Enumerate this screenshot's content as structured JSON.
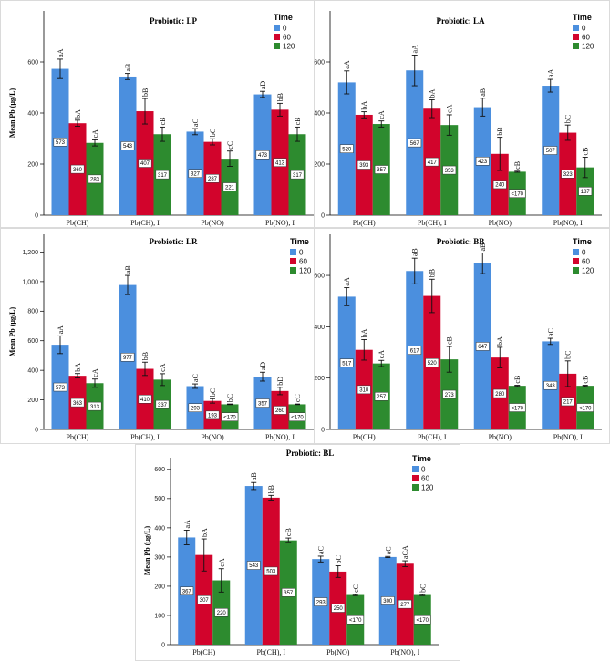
{
  "chart_data": [
    {
      "type": "bar",
      "title": "Probiotic: LP",
      "xlabel": "",
      "ylabel": "Mean Pb (μg/L)",
      "categories": [
        "Pb(CH)",
        "Pb(CH), I",
        "Pb(NO)",
        "Pb(NO), I"
      ],
      "ylim": [
        0,
        800
      ],
      "yticks": [
        "0",
        "200",
        "400",
        "600"
      ],
      "legend": {
        "title": "Time",
        "placement": "top-right"
      },
      "series": [
        {
          "name": "0",
          "color": "#4B8FDE",
          "values": [
            573,
            543,
            327,
            473
          ],
          "errors": [
            38,
            12,
            12,
            12
          ],
          "value_labels": [
            "573",
            "543",
            "327",
            "473"
          ],
          "letters": [
            "aA",
            "aB",
            "aC",
            "aD"
          ]
        },
        {
          "name": "60",
          "color": "#D2042C",
          "values": [
            360,
            407,
            287,
            413
          ],
          "errors": [
            12,
            50,
            12,
            25
          ],
          "value_labels": [
            "360",
            "407",
            "287",
            "413"
          ],
          "letters": [
            "bA",
            "bB",
            "bC",
            "bB"
          ]
        },
        {
          "name": "120",
          "color": "#2D8B2F",
          "values": [
            283,
            317,
            221,
            317
          ],
          "errors": [
            12,
            28,
            30,
            28
          ],
          "value_labels": [
            "283",
            "317",
            "221",
            "317"
          ],
          "letters": [
            "cA",
            "cB",
            "cC",
            "cB"
          ]
        }
      ]
    },
    {
      "type": "bar",
      "title": "Probiotic: LA",
      "xlabel": "",
      "ylabel": "",
      "categories": [
        "Pb(CH)",
        "Pb(CH), I",
        "Pb(NO)",
        "Pb(NO), I"
      ],
      "ylim": [
        0,
        800
      ],
      "yticks": [
        "0",
        "200",
        "400",
        "600"
      ],
      "legend": {
        "title": "Time",
        "placement": "top-right"
      },
      "series": [
        {
          "name": "0",
          "color": "#4B8FDE",
          "values": [
            520,
            567,
            423,
            507
          ],
          "errors": [
            45,
            60,
            35,
            25
          ],
          "value_labels": [
            "520",
            "567",
            "423",
            "507"
          ],
          "letters": [
            "aA",
            "aA",
            "aB",
            "aA"
          ]
        },
        {
          "name": "60",
          "color": "#D2042C",
          "values": [
            393,
            417,
            240,
            323
          ],
          "errors": [
            12,
            35,
            65,
            30
          ],
          "value_labels": [
            "393",
            "417",
            "240",
            "323"
          ],
          "letters": [
            "bA",
            "bA",
            "bB",
            "bC"
          ]
        },
        {
          "name": "120",
          "color": "#2D8B2F",
          "values": [
            357,
            353,
            170,
            187
          ],
          "errors": [
            12,
            40,
            2,
            40
          ],
          "value_labels": [
            "357",
            "353",
            "<170",
            "187"
          ],
          "letters": [
            "cA",
            "cA",
            "cB",
            "cB"
          ]
        }
      ]
    },
    {
      "type": "bar",
      "title": "Probiotic: LR",
      "xlabel": "",
      "ylabel": "Mean Pb (μg/L)",
      "categories": [
        "Pb(CH)",
        "Pb(CH), I",
        "Pb(NO)",
        "Pb(NO), I"
      ],
      "ylim": [
        0,
        1320
      ],
      "yticks": [
        "0",
        "200",
        "400",
        "600",
        "800",
        "1,000",
        "1,200"
      ],
      "legend": {
        "title": "Time",
        "placement": "top-right"
      },
      "series": [
        {
          "name": "0",
          "color": "#4B8FDE",
          "values": [
            573,
            977,
            293,
            357
          ],
          "errors": [
            60,
            65,
            15,
            30
          ],
          "value_labels": [
            "573",
            "977",
            "293",
            "357"
          ],
          "letters": [
            "aA",
            "aB",
            "aC",
            "aD"
          ]
        },
        {
          "name": "60",
          "color": "#D2042C",
          "values": [
            363,
            410,
            193,
            260
          ],
          "errors": [
            15,
            45,
            15,
            25
          ],
          "value_labels": [
            "363",
            "410",
            "193",
            "260"
          ],
          "letters": [
            "bA",
            "bB",
            "bC",
            "bD"
          ]
        },
        {
          "name": "120",
          "color": "#2D8B2F",
          "values": [
            313,
            337,
            170,
            170
          ],
          "errors": [
            28,
            40,
            2,
            2
          ],
          "value_labels": [
            "313",
            "337",
            "<170",
            "<170"
          ],
          "letters": [
            "cA",
            "cA",
            "bC",
            "cC"
          ]
        }
      ]
    },
    {
      "type": "bar",
      "title": "Probiotic: BB",
      "xlabel": "",
      "ylabel": "",
      "categories": [
        "Pb(CH)",
        "Pb(CH), I",
        "Pb(NO)",
        "Pb(NO), I"
      ],
      "ylim": [
        0,
        760
      ],
      "yticks": [
        "0",
        "200",
        "400",
        "600"
      ],
      "legend": {
        "title": "Time",
        "placement": "top-right"
      },
      "series": [
        {
          "name": "0",
          "color": "#4B8FDE",
          "values": [
            517,
            617,
            647,
            343
          ],
          "errors": [
            35,
            50,
            40,
            12
          ],
          "value_labels": [
            "517",
            "617",
            "647",
            "343"
          ],
          "letters": [
            "aA",
            "aB",
            "aB",
            "aC"
          ]
        },
        {
          "name": "60",
          "color": "#D2042C",
          "values": [
            310,
            520,
            280,
            217
          ],
          "errors": [
            40,
            65,
            40,
            50
          ],
          "value_labels": [
            "310",
            "520",
            "280",
            "217"
          ],
          "letters": [
            "bA",
            "bB",
            "bA",
            "bC"
          ]
        },
        {
          "name": "120",
          "color": "#2D8B2F",
          "values": [
            257,
            273,
            170,
            170
          ],
          "errors": [
            12,
            50,
            2,
            2
          ],
          "value_labels": [
            "257",
            "273",
            "<170",
            "<170"
          ],
          "letters": [
            "cA",
            "cB",
            "cB",
            "cB"
          ]
        }
      ]
    },
    {
      "type": "bar",
      "title": "Probiotic: BL",
      "xlabel": "",
      "ylabel": "Mean Pb (μg/L)",
      "categories": [
        "Pb(CH)",
        "Pb(CH), I",
        "Pb(NO)",
        "Pb(NO), I"
      ],
      "ylim": [
        0,
        640
      ],
      "yticks": [
        "0",
        "100",
        "200",
        "300",
        "400",
        "500",
        "600"
      ],
      "legend": {
        "title": "Time",
        "placement": "top-right"
      },
      "series": [
        {
          "name": "0",
          "color": "#4B8FDE",
          "values": [
            367,
            543,
            293,
            300
          ],
          "errors": [
            25,
            12,
            10,
            2
          ],
          "value_labels": [
            "367",
            "543",
            "293",
            "300"
          ],
          "letters": [
            "aA",
            "aB",
            "aC",
            "aC"
          ]
        },
        {
          "name": "60",
          "color": "#D2042C",
          "values": [
            307,
            503,
            250,
            277
          ],
          "errors": [
            55,
            8,
            20,
            10
          ],
          "value_labels": [
            "307",
            "503",
            "250",
            "277"
          ],
          "letters": [
            "bA",
            "bB",
            "bC",
            "aCA"
          ]
        },
        {
          "name": "120",
          "color": "#2D8B2F",
          "values": [
            220,
            357,
            170,
            170
          ],
          "errors": [
            40,
            8,
            2,
            2
          ],
          "value_labels": [
            "220",
            "357",
            "<170",
            "<170"
          ],
          "letters": [
            "cA",
            "cB",
            "cC",
            "bC"
          ]
        }
      ]
    }
  ]
}
